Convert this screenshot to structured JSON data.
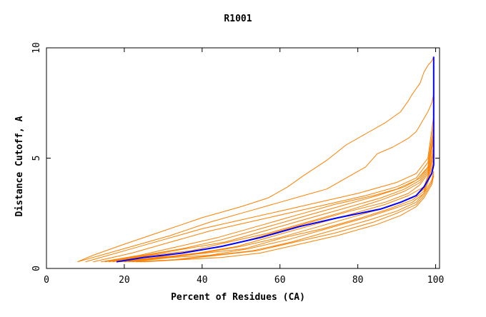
{
  "chart_data": {
    "type": "line",
    "title": "R1001",
    "xlabel": "Percent of Residues (CA)",
    "ylabel": "Distance Cutoff, A",
    "xlim": [
      0,
      101
    ],
    "ylim": [
      0,
      10
    ],
    "x_ticks": [
      0,
      20,
      40,
      60,
      80,
      100
    ],
    "y_ticks": [
      0,
      5,
      10
    ],
    "grid": false,
    "legend": "none",
    "colors": {
      "highlight": "#0000ff",
      "others": "#ff8000"
    },
    "series": [
      {
        "x": [
          8,
          12,
          20,
          30,
          40,
          50,
          57,
          62,
          66,
          72,
          77,
          82,
          87,
          91,
          93,
          94,
          96,
          97,
          98,
          99,
          99.5
        ],
        "y": [
          0.3,
          0.6,
          1.1,
          1.7,
          2.3,
          2.8,
          3.2,
          3.7,
          4.2,
          4.9,
          5.6,
          6.1,
          6.6,
          7.1,
          7.6,
          7.9,
          8.4,
          8.9,
          9.2,
          9.4,
          9.6
        ]
      },
      {
        "x": [
          8,
          14,
          22,
          32,
          42,
          52,
          60,
          66,
          72,
          78,
          82,
          85,
          89,
          93,
          95,
          96,
          97,
          98,
          99,
          99.5
        ],
        "y": [
          0.3,
          0.6,
          1.0,
          1.5,
          2.1,
          2.6,
          3.0,
          3.3,
          3.6,
          4.2,
          4.6,
          5.2,
          5.5,
          5.9,
          6.2,
          6.5,
          6.8,
          7.1,
          7.5,
          7.9
        ]
      },
      {
        "x": [
          10,
          20,
          30,
          40,
          50,
          60,
          70,
          80,
          90,
          95,
          98,
          99.5
        ],
        "y": [
          0.3,
          0.8,
          1.3,
          1.8,
          2.2,
          2.6,
          3.0,
          3.4,
          3.9,
          4.3,
          5.0,
          6.9
        ]
      },
      {
        "x": [
          12,
          22,
          32,
          42,
          52,
          62,
          72,
          82,
          90,
          95,
          98,
          99.5
        ],
        "y": [
          0.3,
          0.7,
          1.2,
          1.7,
          2.1,
          2.5,
          2.9,
          3.3,
          3.7,
          4.1,
          4.8,
          6.5
        ]
      },
      {
        "x": [
          15,
          25,
          35,
          45,
          55,
          65,
          75,
          85,
          92,
          96,
          98,
          99.5
        ],
        "y": [
          0.3,
          0.6,
          0.9,
          1.3,
          1.8,
          2.3,
          2.8,
          3.3,
          3.7,
          4.1,
          4.6,
          6.2
        ]
      },
      {
        "x": [
          16,
          26,
          36,
          46,
          56,
          66,
          76,
          86,
          92,
          96,
          98,
          99.5
        ],
        "y": [
          0.3,
          0.6,
          0.9,
          1.2,
          1.7,
          2.2,
          2.7,
          3.2,
          3.6,
          4.0,
          4.5,
          5.8
        ]
      },
      {
        "x": [
          17,
          27,
          37,
          47,
          57,
          67,
          77,
          86,
          92,
          96,
          98,
          99.5
        ],
        "y": [
          0.3,
          0.6,
          0.8,
          1.2,
          1.6,
          2.1,
          2.6,
          3.1,
          3.5,
          3.9,
          4.4,
          5.5
        ]
      },
      {
        "x": [
          18,
          28,
          38,
          48,
          58,
          68,
          78,
          87,
          93,
          96,
          98,
          99.5
        ],
        "y": [
          0.3,
          0.5,
          0.8,
          1.1,
          1.6,
          2.1,
          2.6,
          3.0,
          3.4,
          3.8,
          4.3,
          5.3
        ]
      },
      {
        "x": [
          19,
          29,
          39,
          49,
          59,
          69,
          79,
          87,
          93,
          97,
          98,
          99.5
        ],
        "y": [
          0.3,
          0.5,
          0.7,
          1.0,
          1.5,
          2.0,
          2.5,
          2.9,
          3.3,
          3.7,
          4.2,
          5.2
        ]
      },
      {
        "x": [
          20,
          30,
          40,
          50,
          60,
          70,
          80,
          88,
          94,
          97,
          98,
          99.5
        ],
        "y": [
          0.3,
          0.5,
          0.7,
          1.0,
          1.4,
          1.9,
          2.4,
          2.8,
          3.2,
          3.6,
          4.1,
          5.0
        ]
      },
      {
        "x": [
          21,
          31,
          41,
          51,
          61,
          71,
          81,
          88,
          94,
          97,
          98,
          99.5
        ],
        "y": [
          0.3,
          0.5,
          0.7,
          0.9,
          1.4,
          1.8,
          2.3,
          2.7,
          3.1,
          3.5,
          4.0,
          4.8
        ]
      },
      {
        "x": [
          22,
          32,
          42,
          52,
          62,
          72,
          82,
          89,
          94,
          97,
          98,
          99.5
        ],
        "y": [
          0.3,
          0.5,
          0.6,
          0.9,
          1.3,
          1.8,
          2.3,
          2.7,
          3.0,
          3.4,
          3.9,
          4.6
        ]
      },
      {
        "x": [
          14,
          24,
          34,
          44,
          54,
          64,
          74,
          84,
          90,
          95,
          98,
          99.5
        ],
        "y": [
          0.3,
          0.6,
          1.0,
          1.4,
          1.9,
          2.4,
          2.9,
          3.3,
          3.6,
          4.0,
          4.6,
          6.0
        ]
      },
      {
        "x": [
          23,
          33,
          43,
          53,
          63,
          73,
          83,
          90,
          95,
          97,
          99,
          99.5
        ],
        "y": [
          0.3,
          0.4,
          0.6,
          0.8,
          1.2,
          1.7,
          2.2,
          2.6,
          3.0,
          3.4,
          4.0,
          4.4
        ]
      },
      {
        "x": [
          24,
          34,
          44,
          54,
          64,
          74,
          84,
          90,
          95,
          97,
          99,
          99.5
        ],
        "y": [
          0.3,
          0.4,
          0.6,
          0.8,
          1.2,
          1.6,
          2.1,
          2.5,
          2.9,
          3.3,
          3.9,
          4.3
        ]
      },
      {
        "x": [
          25,
          35,
          45,
          55,
          65,
          75,
          85,
          91,
          95,
          97,
          99,
          99.5
        ],
        "y": [
          0.3,
          0.4,
          0.5,
          0.7,
          1.1,
          1.5,
          2.0,
          2.4,
          2.8,
          3.2,
          3.8,
          4.2
        ]
      },
      {
        "name": "",
        "highlight": true,
        "x": [
          18,
          25,
          35,
          45,
          55,
          65,
          75,
          86,
          91,
          95,
          97,
          99,
          99.5,
          99.5
        ],
        "y": [
          0.3,
          0.5,
          0.7,
          1.0,
          1.4,
          1.9,
          2.3,
          2.7,
          3.0,
          3.3,
          3.7,
          4.3,
          4.7,
          9.6
        ]
      }
    ]
  }
}
